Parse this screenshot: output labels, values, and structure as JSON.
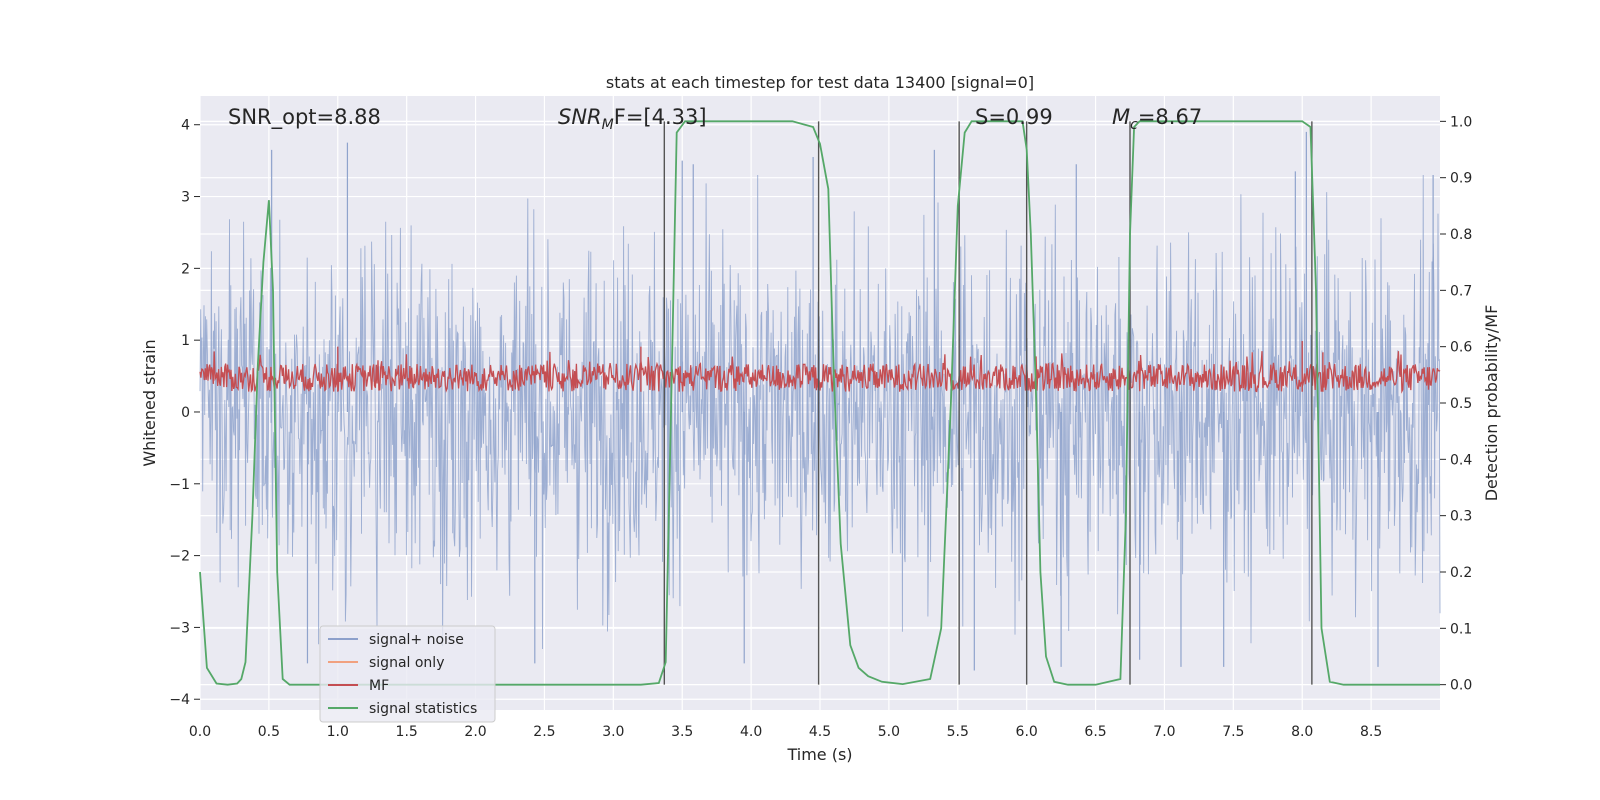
{
  "chart_data": {
    "type": "line",
    "title": "stats at each timestep for test data 13400 [signal=0]",
    "xlabel": "Time (s)",
    "ylabel": "Whitened strain",
    "y2label": "Detection probability/MF",
    "xlim": [
      0,
      9.0
    ],
    "ylim": [
      -4.15,
      4.4
    ],
    "y2lim": [
      -0.045,
      1.045
    ],
    "xticks": [
      "0.0",
      "0.5",
      "1.0",
      "1.5",
      "2.0",
      "2.5",
      "3.0",
      "3.5",
      "4.0",
      "4.5",
      "5.0",
      "5.5",
      "6.0",
      "6.5",
      "7.0",
      "7.5",
      "8.0",
      "8.5"
    ],
    "yticks": [
      "4",
      "3",
      "2",
      "1",
      "0",
      "−1",
      "−2",
      "−3",
      "−4"
    ],
    "y2ticks": [
      "1.0",
      "0.9",
      "0.8",
      "0.7",
      "0.6",
      "0.5",
      "0.4",
      "0.3",
      "0.2",
      "0.1",
      "0.0"
    ],
    "annotations": {
      "snr_opt": "SNR_opt=8.88",
      "snr_mf": "SNR",
      "snr_mf_sub": "M",
      "snr_mf_rest": "F=[4.33]",
      "s_val": "S=0.99",
      "mc": "M",
      "mc_sub": "c",
      "mc_rest": "=8.67"
    },
    "legend": {
      "position": "lower-left",
      "entries": [
        {
          "label": "signal+ noise",
          "color": "#8da0cb"
        },
        {
          "label": "signal only",
          "color": "#f1a17f"
        },
        {
          "label": "MF",
          "color": "#c44e52"
        },
        {
          "label": "signal statistics",
          "color": "#55a868"
        }
      ]
    },
    "series": [
      {
        "name": "signal+ noise",
        "axis": "left",
        "color": "#8fa3cc",
        "description": "dense whitened noise trace, amplitude approx -3.8 to 3.8 over 0-9 s",
        "peaks_high": [
          [
            0.52,
            3.65
          ],
          [
            1.07,
            3.75
          ],
          [
            3.5,
            3.5
          ],
          [
            3.58,
            3.45
          ],
          [
            4.45,
            3.55
          ],
          [
            5.33,
            3.65
          ],
          [
            6.36,
            3.45
          ],
          [
            7.95,
            3.35
          ],
          [
            8.03,
            3.9
          ],
          [
            8.95,
            3.3
          ]
        ],
        "peaks_low": [
          [
            0.78,
            -3.5
          ],
          [
            2.43,
            -3.5
          ],
          [
            3.95,
            -3.5
          ],
          [
            5.62,
            -3.6
          ],
          [
            6.25,
            -3.55
          ],
          [
            6.82,
            -3.45
          ],
          [
            7.12,
            -3.55
          ],
          [
            7.43,
            -3.55
          ],
          [
            8.55,
            -3.55
          ]
        ]
      },
      {
        "name": "signal only",
        "axis": "left",
        "color": "#f1a17f",
        "description": "flat near zero, not visible"
      },
      {
        "name": "MF",
        "axis": "right",
        "color": "#c44e52",
        "description": "matched filter output, approx 0.5 to 0.6 on right axis",
        "peaks": [
          [
            1.0,
            0.6
          ],
          [
            3.2,
            0.6
          ],
          [
            8.0,
            0.61
          ],
          [
            8.15,
            0.59
          ]
        ]
      },
      {
        "name": "signal statistics",
        "axis": "right",
        "color": "#55a868",
        "x": [
          0.0,
          0.05,
          0.12,
          0.2,
          0.27,
          0.3,
          0.33,
          0.38,
          0.42,
          0.46,
          0.5,
          0.53,
          0.56,
          0.6,
          0.65,
          0.72,
          0.8,
          0.9,
          1.0,
          1.5,
          2.0,
          2.5,
          3.0,
          3.2,
          3.33,
          3.38,
          3.42,
          3.46,
          3.52,
          3.6,
          3.7,
          4.0,
          4.3,
          4.45,
          4.5,
          4.56,
          4.6,
          4.65,
          4.72,
          4.78,
          4.85,
          4.95,
          5.1,
          5.3,
          5.38,
          5.45,
          5.5,
          5.55,
          5.6,
          5.65,
          5.7,
          5.8,
          5.9,
          5.97,
          6.0,
          6.03,
          6.07,
          6.1,
          6.14,
          6.2,
          6.3,
          6.5,
          6.68,
          6.72,
          6.75,
          6.78,
          6.82,
          6.9,
          7.0,
          7.5,
          8.0,
          8.06,
          8.1,
          8.14,
          8.2,
          8.3,
          8.5,
          9.0
        ],
        "values": [
          0.2,
          0.03,
          0.002,
          0.0,
          0.002,
          0.01,
          0.04,
          0.3,
          0.57,
          0.75,
          0.86,
          0.7,
          0.2,
          0.01,
          0.0,
          0.0,
          0.0,
          0.0,
          0.0,
          0.0,
          0.0,
          0.0,
          0.0,
          0.0,
          0.003,
          0.04,
          0.5,
          0.98,
          1.0,
          1.0,
          1.0,
          1.0,
          1.0,
          0.99,
          0.96,
          0.88,
          0.55,
          0.25,
          0.07,
          0.03,
          0.015,
          0.005,
          0.001,
          0.01,
          0.1,
          0.5,
          0.85,
          0.98,
          1.0,
          1.0,
          1.0,
          1.0,
          1.0,
          1.0,
          0.95,
          0.8,
          0.5,
          0.2,
          0.05,
          0.005,
          0.0,
          0.0,
          0.01,
          0.3,
          0.8,
          0.99,
          1.0,
          1.0,
          1.0,
          1.0,
          1.0,
          0.99,
          0.7,
          0.1,
          0.005,
          0.0,
          0.0,
          0.0
        ]
      }
    ],
    "vlines": [
      3.37,
      4.49,
      5.51,
      6.0,
      6.75,
      8.07
    ]
  }
}
